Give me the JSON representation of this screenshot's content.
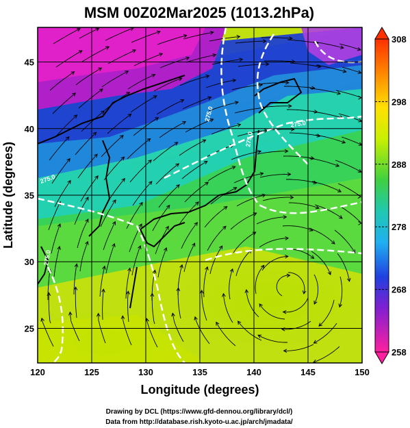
{
  "title": "MSM 00Z02Mar2025 (1013.2hPa)",
  "map": {
    "xlabel": "Longitude (degrees)",
    "ylabel": "Latitude (degrees)",
    "x_ticks": [
      "120",
      "125",
      "130",
      "135",
      "140",
      "145",
      "150"
    ],
    "y_ticks": [
      "25",
      "30",
      "35",
      "40",
      "45"
    ],
    "lon_range": [
      120,
      150
    ],
    "lat_range": [
      22.4,
      47.6
    ],
    "contour_labels": [
      "275.0",
      "275.0",
      "275.0",
      "275.0",
      "275.0"
    ]
  },
  "colorbar": {
    "ticks": [
      "308",
      "298",
      "288",
      "278",
      "268",
      "258"
    ],
    "range": [
      258,
      308
    ]
  },
  "credits": {
    "line1": "Drawing by DCL (https://www.gfd-dennou.org/library/dcl/)",
    "line2": "Data from http://database.rish.kyoto-u.ac.jp/arch/jmadata/"
  },
  "colors": {
    "cold_magenta": "#e020c8",
    "cold_blue": "#2040d8",
    "mid_cyan": "#18d8d0",
    "mid_green": "#30d040",
    "warm_yellow": "#c8e000",
    "contour": "#ffffff",
    "coast": "#000000"
  }
}
